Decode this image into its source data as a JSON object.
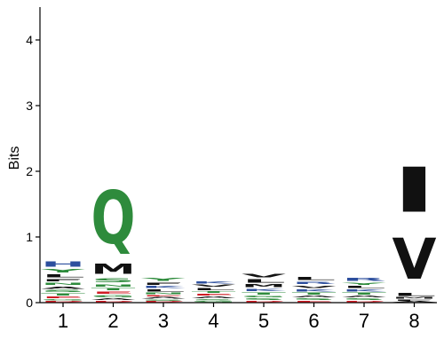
{
  "chart_data": {
    "type": "sequence-logo",
    "ylabel": "Bits",
    "ylim": [
      0,
      4.5
    ],
    "yticks": [
      "0",
      "1",
      "2",
      "3",
      "4"
    ],
    "xticks": [
      "1",
      "2",
      "3",
      "4",
      "5",
      "6",
      "7",
      "8"
    ],
    "colors": {
      "hydrophobic": "#111111",
      "polar": "#2e8b3c",
      "basic": "#2d4f9e",
      "acidic": "#d01c24",
      "other": "#e77fa0"
    },
    "positions": [
      {
        "position": "1",
        "stack": [
          {
            "residue": "D",
            "color": "acidic",
            "bits": 0.03
          },
          {
            "residue": "G",
            "color": "polar",
            "bits": 0.03
          },
          {
            "residue": "E",
            "color": "acidic",
            "bits": 0.04
          },
          {
            "residue": "T",
            "color": "polar",
            "bits": 0.05
          },
          {
            "residue": "S",
            "color": "polar",
            "bits": 0.05
          },
          {
            "residue": "A",
            "color": "hydrophobic",
            "bits": 0.06
          },
          {
            "residue": "N",
            "color": "polar",
            "bits": 0.05
          },
          {
            "residue": "F",
            "color": "hydrophobic",
            "bits": 0.06
          },
          {
            "residue": "L",
            "color": "hydrophobic",
            "bits": 0.07
          },
          {
            "residue": "Y",
            "color": "polar",
            "bits": 0.08
          },
          {
            "residue": "H",
            "color": "basic",
            "bits": 0.13
          }
        ]
      },
      {
        "position": "2",
        "stack": [
          {
            "residue": "D",
            "color": "acidic",
            "bits": 0.03
          },
          {
            "residue": "A",
            "color": "hydrophobic",
            "bits": 0.04
          },
          {
            "residue": "G",
            "color": "polar",
            "bits": 0.05
          },
          {
            "residue": "E",
            "color": "acidic",
            "bits": 0.06
          },
          {
            "residue": "T",
            "color": "polar",
            "bits": 0.05
          },
          {
            "residue": "N",
            "color": "polar",
            "bits": 0.06
          },
          {
            "residue": "S",
            "color": "polar",
            "bits": 0.1
          },
          {
            "residue": "M",
            "color": "hydrophobic",
            "bits": 0.25
          },
          {
            "residue": "Q",
            "color": "polar",
            "bits": 1.3
          }
        ]
      },
      {
        "position": "3",
        "stack": [
          {
            "residue": "D",
            "color": "acidic",
            "bits": 0.02
          },
          {
            "residue": "S",
            "color": "polar",
            "bits": 0.03
          },
          {
            "residue": "A",
            "color": "hydrophobic",
            "bits": 0.04
          },
          {
            "residue": "E",
            "color": "acidic",
            "bits": 0.03
          },
          {
            "residue": "N",
            "color": "polar",
            "bits": 0.04
          },
          {
            "residue": "L",
            "color": "hydrophobic",
            "bits": 0.05
          },
          {
            "residue": "K",
            "color": "basic",
            "bits": 0.05
          },
          {
            "residue": "F",
            "color": "hydrophobic",
            "bits": 0.06
          },
          {
            "residue": "Y",
            "color": "polar",
            "bits": 0.07
          }
        ]
      },
      {
        "position": "4",
        "stack": [
          {
            "residue": "G",
            "color": "polar",
            "bits": 0.03
          },
          {
            "residue": "S",
            "color": "polar",
            "bits": 0.03
          },
          {
            "residue": "A",
            "color": "hydrophobic",
            "bits": 0.04
          },
          {
            "residue": "E",
            "color": "acidic",
            "bits": 0.04
          },
          {
            "residue": "T",
            "color": "polar",
            "bits": 0.04
          },
          {
            "residue": "L",
            "color": "hydrophobic",
            "bits": 0.05
          },
          {
            "residue": "V",
            "color": "hydrophobic",
            "bits": 0.05
          },
          {
            "residue": "K",
            "color": "basic",
            "bits": 0.06
          }
        ]
      },
      {
        "position": "5",
        "stack": [
          {
            "residue": "D",
            "color": "acidic",
            "bits": 0.03
          },
          {
            "residue": "S",
            "color": "polar",
            "bits": 0.04
          },
          {
            "residue": "G",
            "color": "polar",
            "bits": 0.04
          },
          {
            "residue": "T",
            "color": "polar",
            "bits": 0.05
          },
          {
            "residue": "K",
            "color": "basic",
            "bits": 0.06
          },
          {
            "residue": "M",
            "color": "hydrophobic",
            "bits": 0.07
          },
          {
            "residue": "L",
            "color": "hydrophobic",
            "bits": 0.08
          },
          {
            "residue": "V",
            "color": "hydrophobic",
            "bits": 0.08
          }
        ]
      },
      {
        "position": "6",
        "stack": [
          {
            "residue": "E",
            "color": "acidic",
            "bits": 0.03
          },
          {
            "residue": "S",
            "color": "polar",
            "bits": 0.04
          },
          {
            "residue": "A",
            "color": "hydrophobic",
            "bits": 0.04
          },
          {
            "residue": "T",
            "color": "polar",
            "bits": 0.05
          },
          {
            "residue": "K",
            "color": "basic",
            "bits": 0.05
          },
          {
            "residue": "V",
            "color": "hydrophobic",
            "bits": 0.06
          },
          {
            "residue": "R",
            "color": "basic",
            "bits": 0.06
          },
          {
            "residue": "L",
            "color": "hydrophobic",
            "bits": 0.07
          }
        ]
      },
      {
        "position": "7",
        "stack": [
          {
            "residue": "D",
            "color": "acidic",
            "bits": 0.03
          },
          {
            "residue": "S",
            "color": "polar",
            "bits": 0.04
          },
          {
            "residue": "A",
            "color": "hydrophobic",
            "bits": 0.04
          },
          {
            "residue": "T",
            "color": "polar",
            "bits": 0.05
          },
          {
            "residue": "K",
            "color": "basic",
            "bits": 0.05
          },
          {
            "residue": "L",
            "color": "hydrophobic",
            "bits": 0.05
          },
          {
            "residue": "Y",
            "color": "polar",
            "bits": 0.06
          },
          {
            "residue": "R",
            "color": "basic",
            "bits": 0.07
          }
        ]
      },
      {
        "position": "8",
        "stack": [
          {
            "residue": "A",
            "color": "hydrophobic",
            "bits": 0.02
          },
          {
            "residue": "F",
            "color": "hydrophobic",
            "bits": 0.03
          },
          {
            "residue": "M",
            "color": "hydrophobic",
            "bits": 0.04
          },
          {
            "residue": "L",
            "color": "hydrophobic",
            "bits": 0.07
          },
          {
            "residue": "V",
            "color": "hydrophobic",
            "bits": 1.0
          },
          {
            "residue": "I",
            "color": "hydrophobic",
            "bits": 1.1
          }
        ]
      }
    ]
  }
}
